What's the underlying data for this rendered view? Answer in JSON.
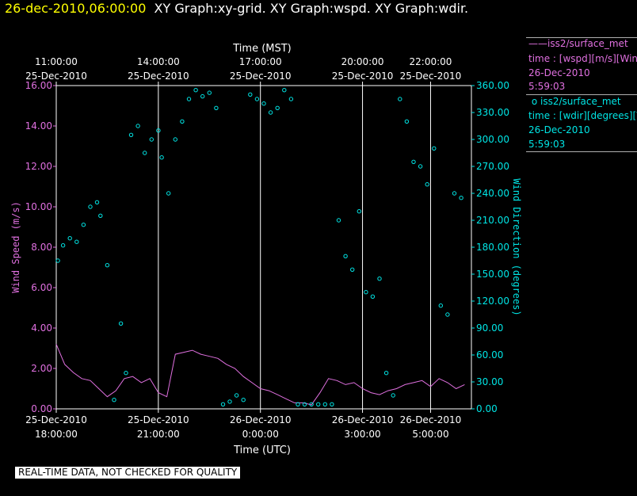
{
  "header": {
    "datetime": "26-dec-2010,06:00:00",
    "graphs": "XY Graph:xy-grid.  XY Graph:wspd.  XY Graph:wdir."
  },
  "legend": {
    "series1": {
      "name": "iss2/surface_met",
      "desc": "time : [wspd][m/s][Wind",
      "date": "26-Dec-2010",
      "time": "5:59:03"
    },
    "series2": {
      "name": "iss2/surface_met",
      "desc": "time : [wdir][degrees][V",
      "date": "26-Dec-2010",
      "time": "5:59:03"
    }
  },
  "note": "REAL-TIME DATA, NOT CHECKED FOR QUALITY",
  "colors": {
    "speed": "#e070e0",
    "direction": "#00e5e5",
    "grid": "#ffffff"
  },
  "chart_data": {
    "type": "scatter",
    "xlabel_bottom": "Time (UTC)",
    "xlabel_top": "Time (MST)",
    "ylabel_left": "Wind Speed (m/s)",
    "ylabel_right": "Wind Direction (degrees)",
    "ylim_left": [
      0,
      16
    ],
    "ylim_right": [
      0,
      360
    ],
    "left_ticks": [
      "0.00",
      "2.00",
      "4.00",
      "6.00",
      "8.00",
      "10.00",
      "12.00",
      "14.00",
      "16.00"
    ],
    "right_ticks": [
      "0.00",
      "30.00",
      "60.00",
      "90.00",
      "120.00",
      "150.00",
      "180.00",
      "210.00",
      "240.00",
      "270.00",
      "300.00",
      "330.00",
      "360.00"
    ],
    "bottom_ticks": [
      {
        "t": 18.0,
        "line1": "25-Dec-2010",
        "line2": "18:00:00"
      },
      {
        "t": 21.0,
        "line1": "25-Dec-2010",
        "line2": "21:00:00"
      },
      {
        "t": 24.0,
        "line1": "26-Dec-2010",
        "line2": "0:00:00"
      },
      {
        "t": 27.0,
        "line1": "26-Dec-2010",
        "line2": "3:00:00"
      },
      {
        "t": 29.0,
        "line1": "26-Dec-2010",
        "line2": "5:00:00"
      }
    ],
    "top_ticks": [
      {
        "t": 18.0,
        "line1": "11:00:00",
        "line2": "25-Dec-2010"
      },
      {
        "t": 21.0,
        "line1": "14:00:00",
        "line2": "25-Dec-2010"
      },
      {
        "t": 24.0,
        "line1": "17:00:00",
        "line2": "25-Dec-2010"
      },
      {
        "t": 27.0,
        "line1": "20:00:00",
        "line2": "25-Dec-2010"
      },
      {
        "t": 29.0,
        "line1": "22:00:00",
        "line2": "25-Dec-2010"
      }
    ],
    "x_range_hours_utc": [
      18.0,
      30.2
    ],
    "grid_lines_hours_utc": [
      21.0,
      24.0,
      27.0,
      29.0
    ],
    "series": [
      {
        "name": "iss2/surface_met",
        "kind": "line",
        "axis": "left",
        "x": [
          18.0,
          18.25,
          18.5,
          18.75,
          19.0,
          19.25,
          19.5,
          19.75,
          20.0,
          20.25,
          20.5,
          20.75,
          21.0,
          21.25,
          21.5,
          21.75,
          22.0,
          22.25,
          22.5,
          22.75,
          23.0,
          23.25,
          23.5,
          23.75,
          24.0,
          24.25,
          24.5,
          24.75,
          25.0,
          25.25,
          25.5,
          25.75,
          26.0,
          26.25,
          26.5,
          26.75,
          27.0,
          27.25,
          27.5,
          27.75,
          28.0,
          28.25,
          28.5,
          28.75,
          29.0,
          29.25,
          29.5,
          29.75,
          30.0
        ],
        "values": [
          3.2,
          2.2,
          1.8,
          1.5,
          1.4,
          1.0,
          0.6,
          0.9,
          1.5,
          1.6,
          1.3,
          1.5,
          0.8,
          0.6,
          2.7,
          2.8,
          2.9,
          2.7,
          2.6,
          2.5,
          2.2,
          2.0,
          1.6,
          1.3,
          1.0,
          0.9,
          0.7,
          0.5,
          0.3,
          0.3,
          0.2,
          0.8,
          1.5,
          1.4,
          1.2,
          1.3,
          1.0,
          0.8,
          0.7,
          0.9,
          1.0,
          1.2,
          1.3,
          1.4,
          1.1,
          1.5,
          1.3,
          1.0,
          1.2
        ]
      },
      {
        "name": "iss2/surface_met",
        "kind": "points",
        "axis": "right",
        "x": [
          18.05,
          18.2,
          18.4,
          18.6,
          18.8,
          19.0,
          19.2,
          19.3,
          19.5,
          19.7,
          19.9,
          20.05,
          20.2,
          20.4,
          20.6,
          20.8,
          21.0,
          21.1,
          21.3,
          21.5,
          21.7,
          21.9,
          22.1,
          22.3,
          22.5,
          22.7,
          22.9,
          23.1,
          23.3,
          23.5,
          23.7,
          23.9,
          24.1,
          24.3,
          24.5,
          24.7,
          24.9,
          25.1,
          25.3,
          25.5,
          25.7,
          25.9,
          26.1,
          26.3,
          26.5,
          26.7,
          26.9,
          27.1,
          27.3,
          27.5,
          27.7,
          27.9,
          28.1,
          28.3,
          28.5,
          28.7,
          28.9,
          29.1,
          29.3,
          29.5,
          29.7,
          29.9
        ],
        "values": [
          165,
          182,
          190,
          186,
          205,
          225,
          230,
          215,
          160,
          10,
          95,
          40,
          305,
          315,
          285,
          300,
          310,
          280,
          240,
          300,
          320,
          345,
          355,
          348,
          352,
          335,
          5,
          8,
          15,
          10,
          350,
          345,
          340,
          330,
          335,
          355,
          345,
          5,
          5,
          5,
          5,
          5,
          5,
          210,
          170,
          155,
          220,
          130,
          125,
          145,
          40,
          15,
          345,
          320,
          275,
          270,
          250,
          290,
          115,
          105,
          240,
          235
        ]
      }
    ]
  }
}
